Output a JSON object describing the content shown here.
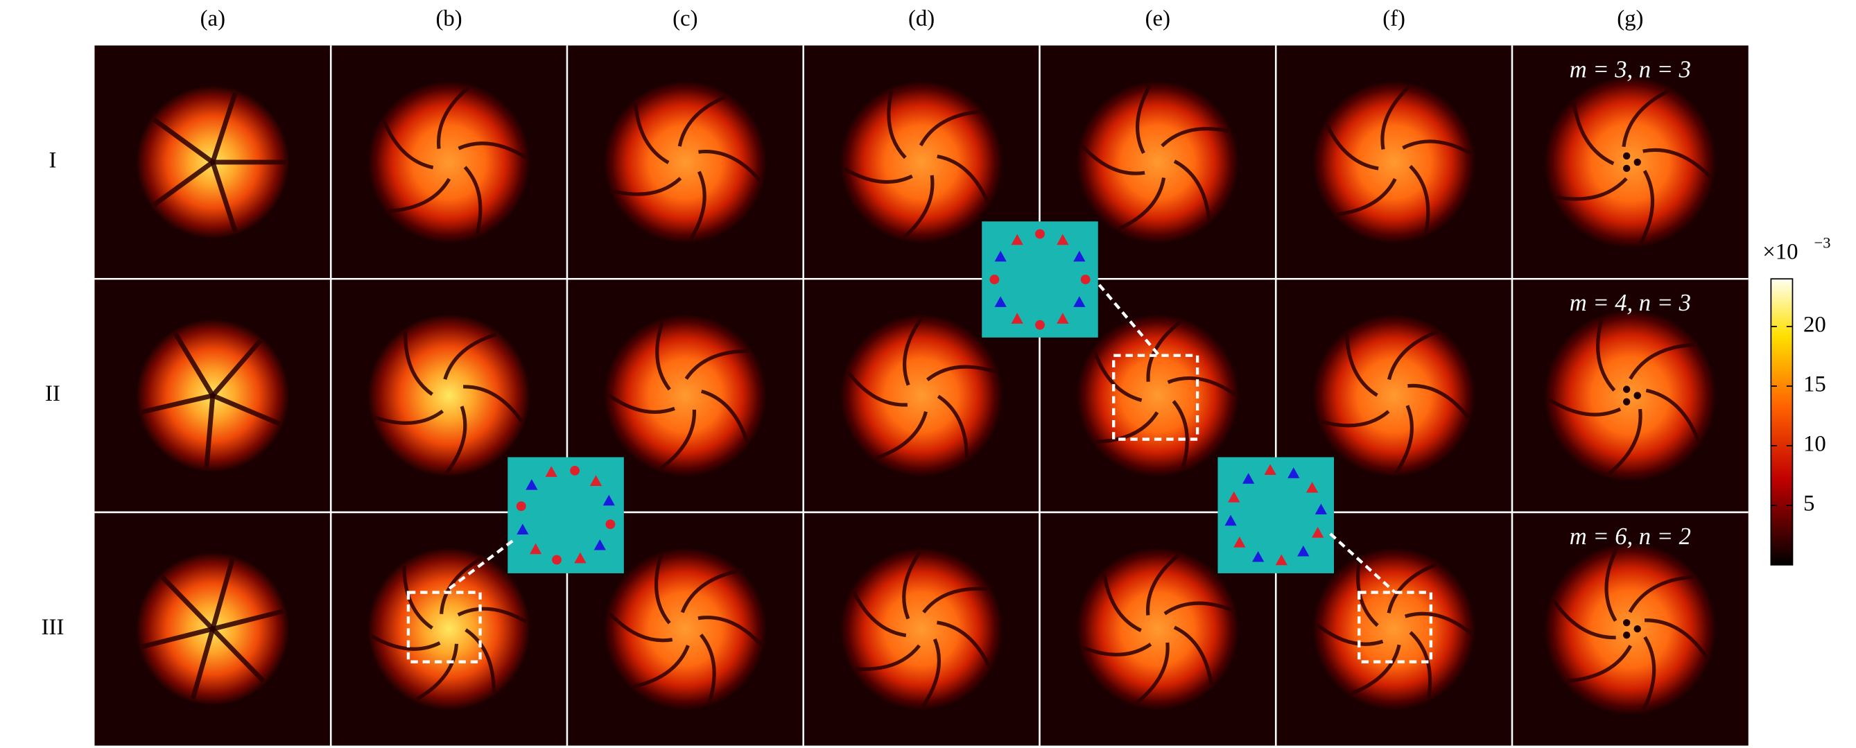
{
  "columns": [
    "(a)",
    "(b)",
    "(c)",
    "(d)",
    "(e)",
    "(f)",
    "(g)"
  ],
  "rows": [
    "I",
    "II",
    "III"
  ],
  "annotations": [
    "m = 3, n = 3",
    "m = 4, n = 3",
    "m = 6, n = 2"
  ],
  "colorbar": {
    "scale_base": "×10",
    "scale_exponent": "−3",
    "lim": [
      0,
      24
    ],
    "ticks": [
      5,
      10,
      15,
      20
    ]
  }
}
